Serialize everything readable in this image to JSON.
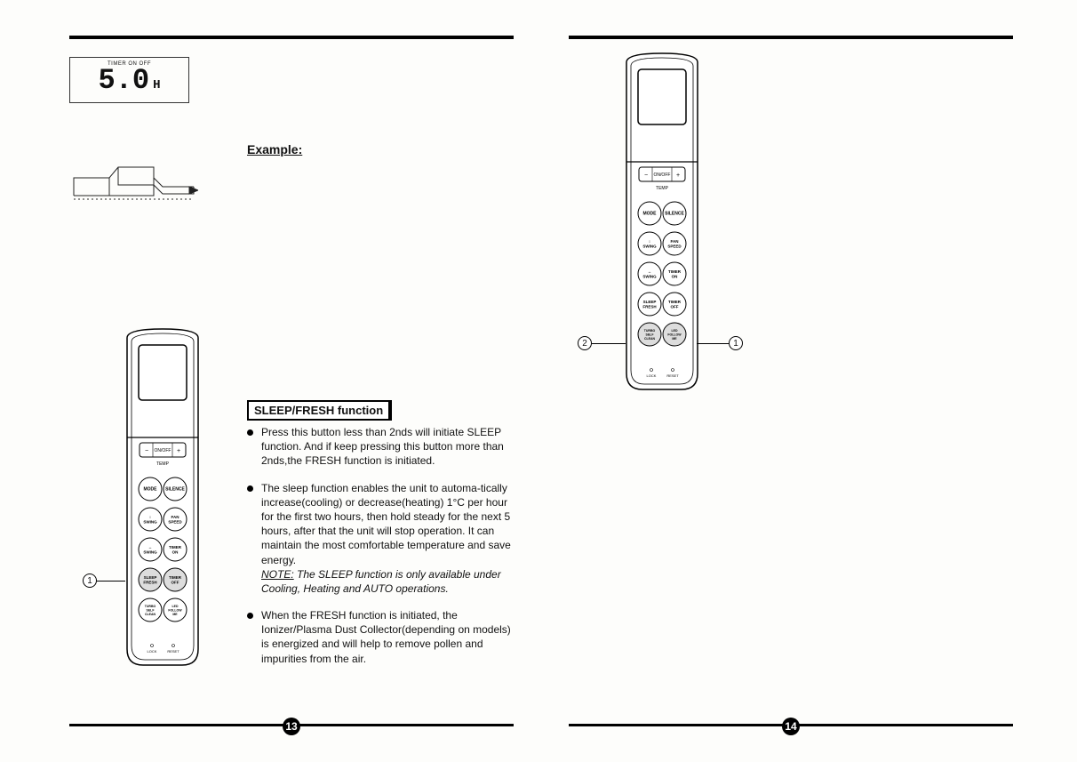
{
  "pages": {
    "left_num": "13",
    "right_num": "14"
  },
  "lcd": {
    "label": "TIMER ON OFF",
    "value": "5.0",
    "unit": "H"
  },
  "example_label": "Example:",
  "section": {
    "title": "SLEEP/FRESH  function"
  },
  "bullets": [
    "Press this button less than 2nds will initiate SLEEP function. And if keep pressing this button more than 2nds,the FRESH function is initiated.",
    "The sleep function enables the unit to automa-tically increase(cooling) or decrease(heating) 1°C per hour for the first two hours, then hold steady for the next 5 hours, after that the unit will stop operation. It can maintain the most comfortable temperature and save energy.",
    "When the FRESH function is initiated, the Ionizer/Plasma Dust Collector(depending on models) is energized and will help to remove pollen and impurities from the air."
  ],
  "note": {
    "prefix": "NOTE:",
    "text": " The SLEEP  function is only  available under Cooling, Heating and  AUTO operations."
  },
  "remote": {
    "onoff_label": "ON/OFF",
    "temp_label": "TEMP",
    "minus": "−",
    "plus": "+",
    "buttons": [
      [
        "MODE",
        "SILENCE"
      ],
      [
        "↕\nSWING",
        "FAN\nSPEED"
      ],
      [
        "↔\nSWING",
        "TIMER\nON"
      ],
      [
        "SLEEP\nFRESH",
        "TIMER\nOFF"
      ],
      [
        "TURBO\nSELF\nCLEAN",
        "LED\nFOLLOW\nME"
      ]
    ],
    "bottom": [
      "LOCK",
      "RESET"
    ]
  },
  "callouts": {
    "left_page": {
      "c1": "1"
    },
    "right_page": {
      "c1": "1",
      "c2": "2"
    }
  }
}
